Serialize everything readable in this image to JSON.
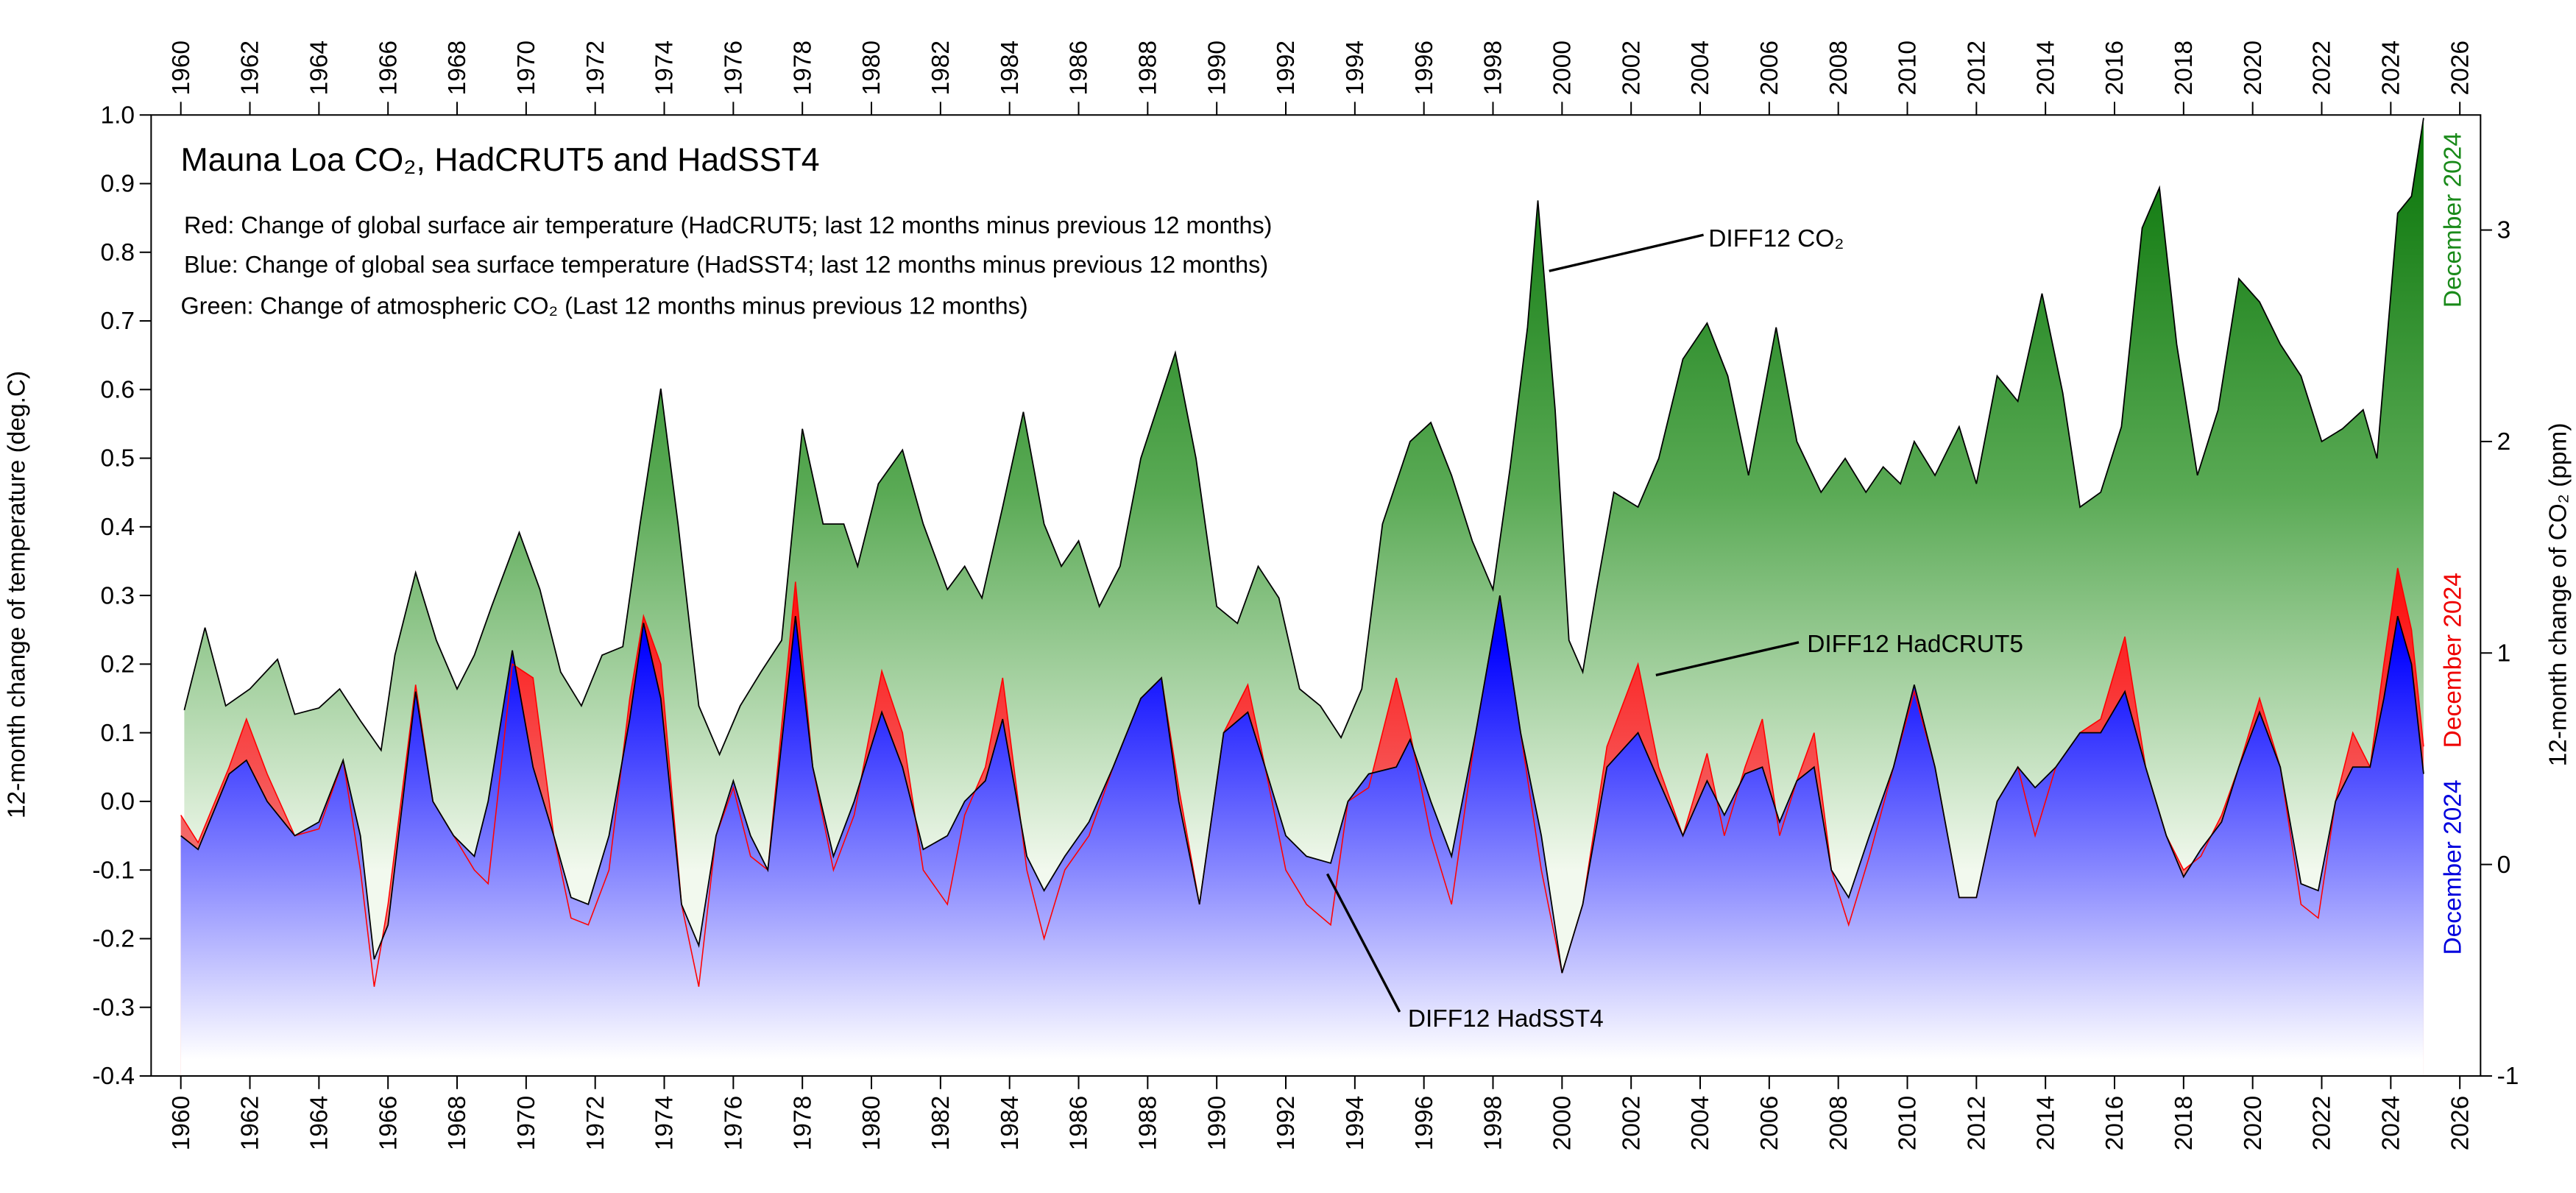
{
  "chart_data": {
    "type": "area",
    "title": "Mauna Loa CO₂, HadCRUT5 and HadSST4",
    "notes": [
      "Red: Change of global surface air temperature (HadCRUT5; last 12 months minus previous 12 months)",
      "Blue: Change of global sea surface temperature (HadSST4; last 12 months minus previous 12 months)",
      "Green: Change of atmospheric CO₂ (Last 12 months minus previous 12 months)"
    ],
    "ylabel": "12-month change of temperature (deg.C)",
    "y2label": "12-month change of CO₂ (ppm)",
    "end_labels": [
      "December 2024",
      "December 2024",
      "December 2024"
    ],
    "xlim": [
      1959.14,
      2026.6
    ],
    "xticks": [
      1960,
      1962,
      1964,
      1966,
      1968,
      1970,
      1972,
      1974,
      1976,
      1978,
      1980,
      1982,
      1984,
      1986,
      1988,
      1990,
      1992,
      1994,
      1996,
      1998,
      2000,
      2002,
      2004,
      2006,
      2008,
      2010,
      2012,
      2014,
      2016,
      2018,
      2020,
      2022,
      2024,
      2026
    ],
    "ylim": [
      -0.4,
      1.0
    ],
    "yticks": [
      -0.4,
      -0.3,
      -0.2,
      -0.1,
      {
        "value": 0,
        "label": "0.0"
      },
      0.1,
      0.2,
      0.3,
      0.4,
      0.5,
      0.6,
      0.7,
      0.8,
      0.9,
      {
        "value": 1,
        "label": "1.0"
      }
    ],
    "y2lim": [
      -1,
      3.544
    ],
    "y2ticks": [
      -1,
      0,
      1,
      2,
      3
    ],
    "series": [
      {
        "name": "DIFF12 CO₂",
        "color": "#0a7a0a",
        "axis": "y2",
        "x": [
          1960.1,
          1960.7,
          1961.3,
          1962.0,
          1962.8,
          1963.3,
          1964.0,
          1964.6,
          1965.2,
          1965.8,
          1966.2,
          1966.8,
          1967.4,
          1968.0,
          1968.5,
          1969.0,
          1969.8,
          1970.4,
          1971.0,
          1971.6,
          1972.2,
          1972.8,
          1973.3,
          1973.9,
          1974.4,
          1975.0,
          1975.6,
          1976.2,
          1976.8,
          1977.4,
          1978.0,
          1978.6,
          1979.2,
          1979.6,
          1980.2,
          1980.9,
          1981.5,
          1982.2,
          1982.7,
          1983.2,
          1983.8,
          1984.4,
          1985.0,
          1985.5,
          1986.0,
          1986.6,
          1987.2,
          1987.8,
          1988.8,
          1989.4,
          1990.0,
          1990.6,
          1991.2,
          1991.8,
          1992.4,
          1993.0,
          1993.6,
          1994.2,
          1994.8,
          1995.6,
          1996.2,
          1996.8,
          1997.4,
          1998.0,
          1998.5,
          1999.0,
          1999.3,
          1999.8,
          2000.2,
          2000.6,
          2001.0,
          2001.5,
          2002.2,
          2002.8,
          2003.5,
          2004.2,
          2004.8,
          2005.4,
          2006.2,
          2006.8,
          2007.5,
          2008.2,
          2008.8,
          2009.3,
          2009.8,
          2010.2,
          2010.8,
          2011.5,
          2012.0,
          2012.6,
          2013.2,
          2013.9,
          2014.5,
          2015.0,
          2015.6,
          2016.2,
          2016.8,
          2017.3,
          2017.8,
          2018.4,
          2019.0,
          2019.6,
          2020.2,
          2020.8,
          2021.4,
          2022.0,
          2022.6,
          2023.2,
          2023.6,
          2024.2,
          2024.6,
          2024.95
        ],
        "values": [
          0.73,
          1.12,
          0.75,
          0.83,
          0.97,
          0.71,
          0.74,
          0.83,
          0.68,
          0.54,
          0.99,
          1.38,
          1.06,
          0.83,
          0.99,
          1.22,
          1.57,
          1.3,
          0.91,
          0.75,
          0.99,
          1.03,
          1.61,
          2.25,
          1.61,
          0.75,
          0.52,
          0.75,
          0.91,
          1.06,
          2.06,
          1.61,
          1.61,
          1.41,
          1.8,
          1.96,
          1.61,
          1.3,
          1.41,
          1.26,
          1.69,
          2.14,
          1.61,
          1.41,
          1.53,
          1.22,
          1.41,
          1.92,
          2.42,
          1.92,
          1.22,
          1.14,
          1.41,
          1.26,
          0.83,
          0.75,
          0.6,
          0.83,
          1.61,
          2.0,
          2.09,
          1.84,
          1.53,
          1.3,
          1.88,
          2.54,
          3.14,
          2.15,
          1.06,
          0.91,
          1.3,
          1.76,
          1.69,
          1.92,
          2.39,
          2.56,
          2.31,
          1.84,
          2.54,
          2.0,
          1.76,
          1.92,
          1.76,
          1.88,
          1.8,
          2.0,
          1.84,
          2.07,
          1.8,
          2.31,
          2.19,
          2.7,
          2.23,
          1.69,
          1.76,
          2.07,
          3.01,
          3.2,
          2.46,
          1.84,
          2.15,
          2.77,
          2.66,
          2.46,
          2.31,
          2.0,
          2.06,
          2.15,
          1.92,
          3.08,
          3.16,
          3.53
        ]
      },
      {
        "name": "DIFF12 HadCRUT5",
        "color": "#ff0000",
        "axis": "y",
        "x": [
          1960.0,
          1960.5,
          1961.4,
          1961.9,
          1962.5,
          1963.3,
          1964.0,
          1964.7,
          1965.2,
          1965.6,
          1966.0,
          1966.8,
          1967.3,
          1967.9,
          1968.5,
          1968.9,
          1969.6,
          1970.2,
          1970.8,
          1971.3,
          1971.8,
          1972.4,
          1973.0,
          1973.4,
          1973.9,
          1974.5,
          1975.0,
          1975.5,
          1976.0,
          1976.5,
          1977.0,
          1977.8,
          1978.3,
          1978.9,
          1979.5,
          1980.3,
          1980.9,
          1981.5,
          1982.2,
          1982.7,
          1983.3,
          1983.8,
          1984.5,
          1985.0,
          1985.6,
          1986.3,
          1987.0,
          1987.8,
          1988.4,
          1988.9,
          1989.5,
          1990.2,
          1990.9,
          1991.4,
          1992.0,
          1992.6,
          1993.3,
          1993.8,
          1994.4,
          1995.2,
          1995.6,
          1996.2,
          1996.8,
          1997.5,
          1998.2,
          1998.8,
          1999.4,
          2000.0,
          2000.6,
          2001.3,
          2002.2,
          2002.8,
          2003.5,
          2004.2,
          2004.7,
          2005.3,
          2005.8,
          2006.3,
          2006.8,
          2007.3,
          2007.8,
          2008.3,
          2008.9,
          2009.6,
          2010.2,
          2010.8,
          2011.5,
          2012.0,
          2012.6,
          2013.2,
          2013.7,
          2014.3,
          2015.0,
          2015.6,
          2016.3,
          2016.9,
          2017.5,
          2018.0,
          2018.5,
          2019.1,
          2019.6,
          2020.2,
          2020.8,
          2021.4,
          2021.9,
          2022.4,
          2022.9,
          2023.4,
          2023.8,
          2024.2,
          2024.6,
          2024.95
        ],
        "values": [
          -0.02,
          -0.06,
          0.05,
          0.12,
          0.04,
          -0.05,
          -0.04,
          0.06,
          -0.1,
          -0.27,
          -0.15,
          0.17,
          0.0,
          -0.05,
          -0.1,
          -0.12,
          0.2,
          0.18,
          -0.05,
          -0.17,
          -0.18,
          -0.1,
          0.15,
          0.27,
          0.2,
          -0.15,
          -0.27,
          -0.05,
          0.02,
          -0.08,
          -0.1,
          0.32,
          0.05,
          -0.1,
          -0.02,
          0.19,
          0.1,
          -0.1,
          -0.15,
          -0.02,
          0.05,
          0.18,
          -0.1,
          -0.2,
          -0.1,
          -0.05,
          0.05,
          0.15,
          0.18,
          0.02,
          -0.15,
          0.1,
          0.17,
          0.05,
          -0.1,
          -0.15,
          -0.18,
          0.0,
          0.02,
          0.18,
          0.1,
          -0.05,
          -0.15,
          0.1,
          0.3,
          0.1,
          -0.1,
          -0.25,
          -0.15,
          0.08,
          0.2,
          0.05,
          -0.05,
          0.07,
          -0.05,
          0.05,
          0.12,
          -0.05,
          0.03,
          0.1,
          -0.1,
          -0.18,
          -0.08,
          0.05,
          0.16,
          0.05,
          -0.14,
          -0.14,
          0.0,
          0.05,
          -0.05,
          0.05,
          0.1,
          0.12,
          0.24,
          0.05,
          -0.05,
          -0.1,
          -0.08,
          -0.02,
          0.05,
          0.15,
          0.05,
          -0.15,
          -0.17,
          0.0,
          0.1,
          0.05,
          0.2,
          0.34,
          0.25,
          0.08
        ]
      },
      {
        "name": "DIFF12 HadSST4",
        "color": "#0000ff",
        "axis": "y",
        "x": [
          1960.0,
          1960.5,
          1961.4,
          1961.9,
          1962.5,
          1963.3,
          1964.0,
          1964.7,
          1965.2,
          1965.6,
          1966.0,
          1966.8,
          1967.3,
          1967.9,
          1968.5,
          1968.9,
          1969.6,
          1970.2,
          1970.8,
          1971.3,
          1971.8,
          1972.4,
          1973.0,
          1973.4,
          1973.9,
          1974.5,
          1975.0,
          1975.5,
          1976.0,
          1976.5,
          1977.0,
          1977.8,
          1978.3,
          1978.9,
          1979.5,
          1980.3,
          1980.9,
          1981.5,
          1982.2,
          1982.7,
          1983.3,
          1983.8,
          1984.5,
          1985.0,
          1985.6,
          1986.3,
          1987.0,
          1987.8,
          1988.4,
          1988.9,
          1989.5,
          1990.2,
          1990.9,
          1991.4,
          1992.0,
          1992.6,
          1993.3,
          1993.8,
          1994.4,
          1995.2,
          1995.6,
          1996.2,
          1996.8,
          1997.5,
          1998.2,
          1998.8,
          1999.4,
          2000.0,
          2000.6,
          2001.3,
          2002.2,
          2002.8,
          2003.5,
          2004.2,
          2004.7,
          2005.3,
          2005.8,
          2006.3,
          2006.8,
          2007.3,
          2007.8,
          2008.3,
          2008.9,
          2009.6,
          2010.2,
          2010.8,
          2011.5,
          2012.0,
          2012.6,
          2013.2,
          2013.7,
          2014.3,
          2015.0,
          2015.6,
          2016.3,
          2016.9,
          2017.5,
          2018.0,
          2018.5,
          2019.1,
          2019.6,
          2020.2,
          2020.8,
          2021.4,
          2021.9,
          2022.4,
          2022.9,
          2023.4,
          2023.8,
          2024.2,
          2024.6,
          2024.95
        ],
        "values": [
          -0.05,
          -0.07,
          0.04,
          0.06,
          0.0,
          -0.05,
          -0.03,
          0.06,
          -0.05,
          -0.23,
          -0.18,
          0.16,
          0.0,
          -0.05,
          -0.08,
          0.0,
          0.22,
          0.05,
          -0.05,
          -0.14,
          -0.15,
          -0.05,
          0.12,
          0.26,
          0.15,
          -0.15,
          -0.21,
          -0.05,
          0.03,
          -0.05,
          -0.1,
          0.27,
          0.05,
          -0.08,
          0.0,
          0.13,
          0.05,
          -0.07,
          -0.05,
          0.0,
          0.03,
          0.12,
          -0.08,
          -0.13,
          -0.08,
          -0.03,
          0.05,
          0.15,
          0.18,
          0.0,
          -0.15,
          0.1,
          0.13,
          0.05,
          -0.05,
          -0.08,
          -0.09,
          0.0,
          0.04,
          0.05,
          0.09,
          0.0,
          -0.08,
          0.1,
          0.3,
          0.1,
          -0.05,
          -0.25,
          -0.15,
          0.05,
          0.1,
          0.03,
          -0.05,
          0.03,
          -0.02,
          0.04,
          0.05,
          -0.03,
          0.03,
          0.05,
          -0.1,
          -0.14,
          -0.05,
          0.05,
          0.17,
          0.05,
          -0.14,
          -0.14,
          0.0,
          0.05,
          0.02,
          0.05,
          0.1,
          0.1,
          0.16,
          0.05,
          -0.05,
          -0.11,
          -0.07,
          -0.03,
          0.05,
          0.13,
          0.05,
          -0.12,
          -0.13,
          0.0,
          0.05,
          0.05,
          0.15,
          0.27,
          0.2,
          0.04
        ]
      }
    ]
  }
}
